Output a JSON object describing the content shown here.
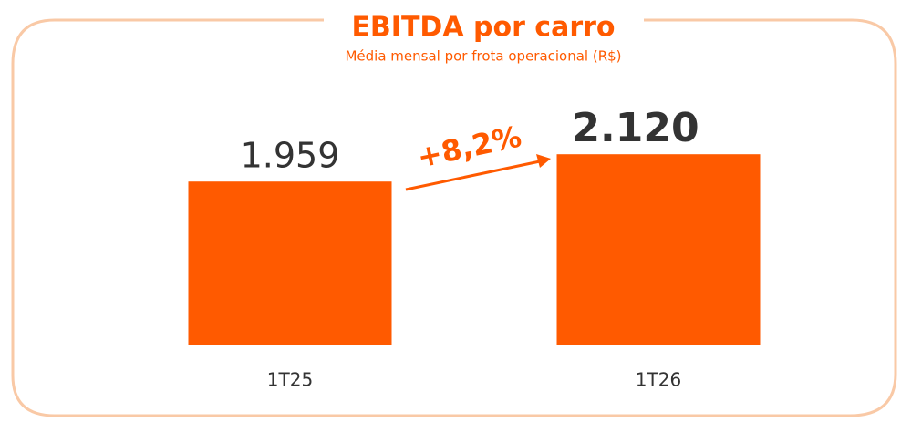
{
  "chart_data": {
    "type": "bar",
    "title": "EBITDA por carro",
    "subtitle": "Média mensal  por frota operacional (R$)",
    "categories": [
      "1T25",
      "1T26"
    ],
    "values": [
      1959,
      2120
    ],
    "value_labels": [
      "1.959",
      "2.120"
    ],
    "color": "#ff5a00",
    "ylim": [
      1000,
      2400
    ],
    "annotation": "+8,2%"
  }
}
